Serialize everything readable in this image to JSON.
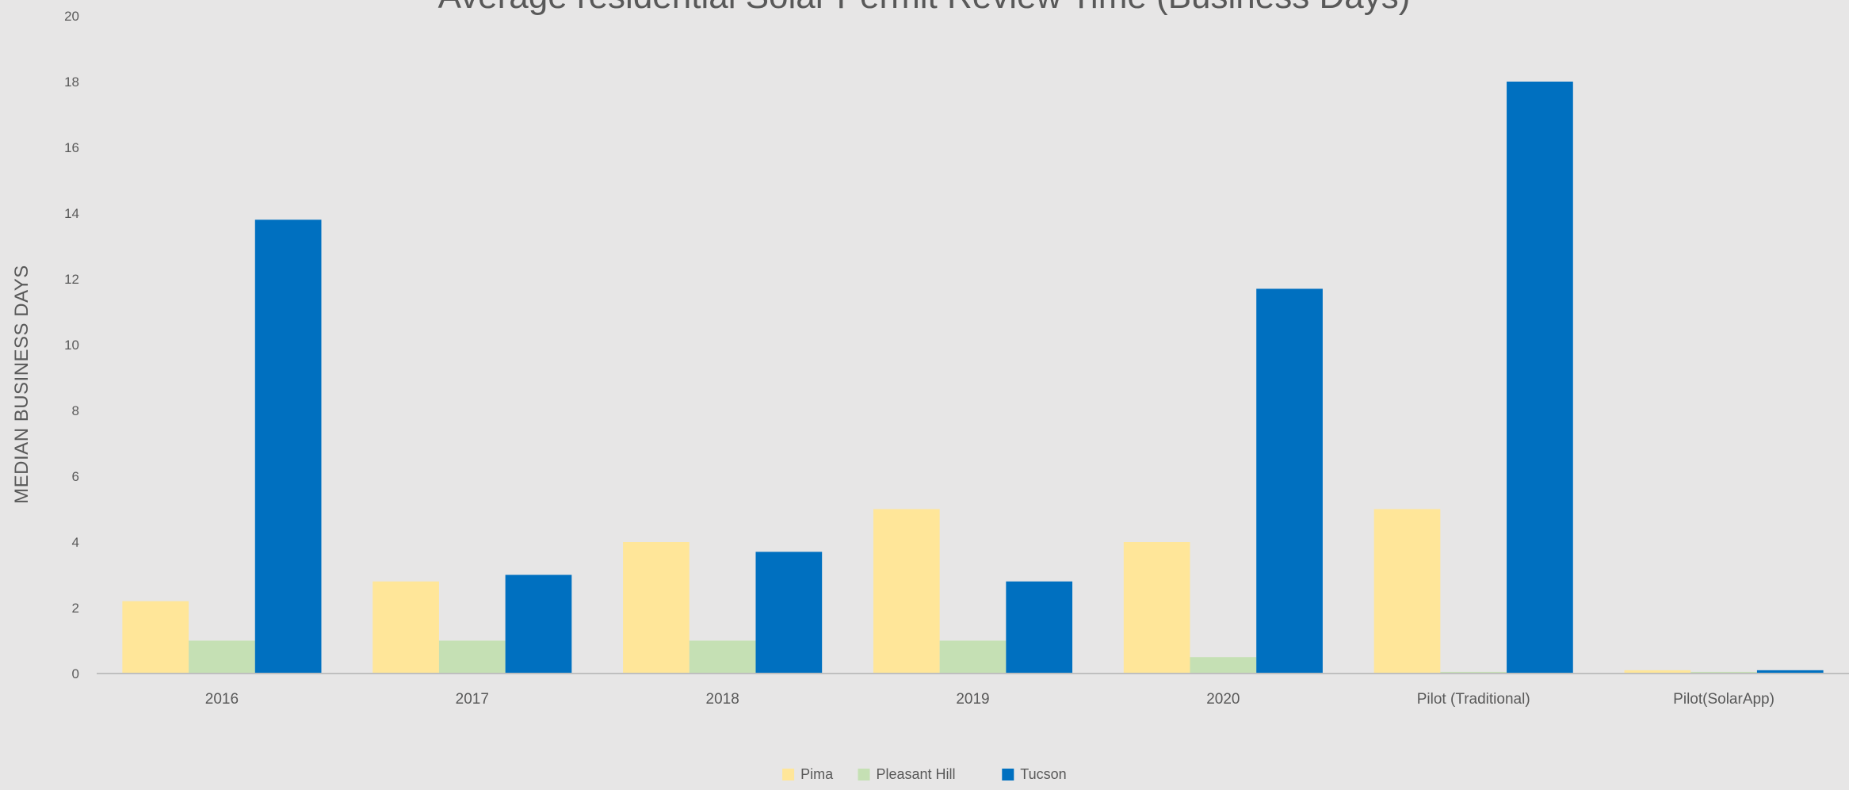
{
  "chart_data": {
    "type": "bar",
    "title": "Average residential Solar Permit Review Time (Business Days)",
    "xlabel": "",
    "ylabel": "MEDIAN BUSINESS DAYS",
    "ylim": [
      0,
      20
    ],
    "yticks": [
      0,
      2,
      4,
      6,
      8,
      10,
      12,
      14,
      16,
      18,
      20
    ],
    "grid": false,
    "legend_position": "bottom",
    "categories": [
      "2016",
      "2017",
      "2018",
      "2019",
      "2020",
      "Pilot (Traditional)",
      "Pilot(SolarApp)"
    ],
    "series": [
      {
        "name": "Pima",
        "color": "#ffe699",
        "values": [
          2.2,
          2.8,
          4,
          5,
          4,
          5,
          0.1
        ]
      },
      {
        "name": "Pleasant Hill",
        "color": "#c5e0b4",
        "values": [
          1,
          1,
          1,
          1,
          0.5,
          0.05,
          0.05
        ]
      },
      {
        "name": "Tucson",
        "color": "#0070c0",
        "values": [
          13.8,
          3,
          3.7,
          2.8,
          11.7,
          18,
          0.1
        ]
      }
    ],
    "colors": {
      "background": "#e7e6e6",
      "axis": "#bfbfbf",
      "text": "#595959"
    }
  }
}
